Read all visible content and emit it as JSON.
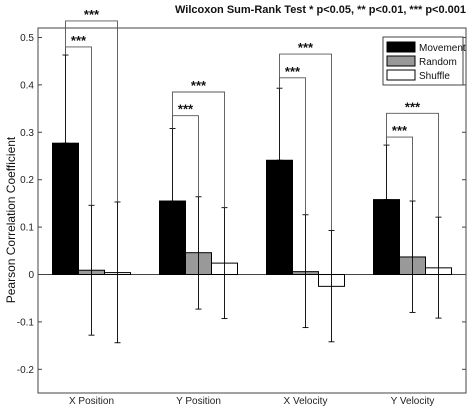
{
  "chart_data": {
    "type": "bar",
    "title": "Wilcoxon Sum-Rank Test * p<0.05, ** p<0.01, *** p<0.001",
    "xlabel": "",
    "ylabel": "Pearson Correlation Coefficient",
    "ylim": [
      -0.25,
      0.52
    ],
    "yticks": [
      -0.2,
      -0.1,
      0,
      0.1,
      0.2,
      0.3,
      0.4,
      0.5
    ],
    "ytick_labels": [
      "-0.2",
      "-0.1",
      "0",
      "0.1",
      "0.2",
      "0.3",
      "0.4",
      "0.5"
    ],
    "grid": false,
    "legend_position": "top-right",
    "categories": [
      "X Position",
      "Y Position",
      "X Velocity",
      "Y Velocity"
    ],
    "series": [
      {
        "name": "Movement",
        "color": "#000000",
        "values": [
          0.277,
          0.155,
          0.241,
          0.158
        ],
        "err_low": [
          0.277,
          0.155,
          0.241,
          0.158
        ],
        "err_high": [
          0.463,
          0.308,
          0.393,
          0.273
        ]
      },
      {
        "name": "Random",
        "color": "#999999",
        "values": [
          0.009,
          0.046,
          0.006,
          0.037
        ],
        "err_low": [
          -0.128,
          -0.073,
          -0.112,
          -0.08
        ],
        "err_high": [
          0.146,
          0.164,
          0.126,
          0.155
        ]
      },
      {
        "name": "Shuffle",
        "color": "#ffffff",
        "values": [
          0.004,
          0.024,
          -0.025,
          0.014
        ],
        "err_low": [
          -0.144,
          -0.093,
          -0.142,
          -0.092
        ],
        "err_high": [
          0.153,
          0.141,
          0.093,
          0.121
        ]
      }
    ],
    "significance": [
      {
        "category": 0,
        "from": "Movement",
        "to": "Random",
        "label": "***",
        "y": 0.48
      },
      {
        "category": 0,
        "from": "Movement",
        "to": "Shuffle",
        "label": "***",
        "y": 0.535
      },
      {
        "category": 1,
        "from": "Movement",
        "to": "Random",
        "label": "***",
        "y": 0.335
      },
      {
        "category": 1,
        "from": "Movement",
        "to": "Shuffle",
        "label": "***",
        "y": 0.385
      },
      {
        "category": 2,
        "from": "Movement",
        "to": "Random",
        "label": "***",
        "y": 0.415
      },
      {
        "category": 2,
        "from": "Movement",
        "to": "Shuffle",
        "label": "***",
        "y": 0.465
      },
      {
        "category": 3,
        "from": "Movement",
        "to": "Random",
        "label": "***",
        "y": 0.29
      },
      {
        "category": 3,
        "from": "Movement",
        "to": "Shuffle",
        "label": "***",
        "y": 0.34
      }
    ]
  }
}
